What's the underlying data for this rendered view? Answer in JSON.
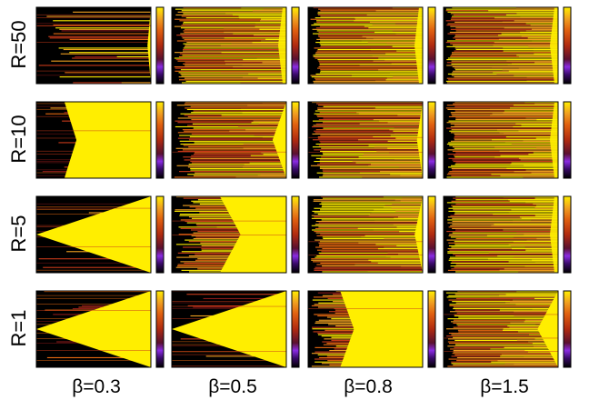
{
  "chart_data": {
    "type": "heatmap",
    "grid_layout": "4x4 panel grid; rows = R values, columns = beta values",
    "row_labels": [
      "R=50",
      "R=10",
      "R=5",
      "R=1"
    ],
    "col_labels": [
      "β=0.3",
      "β=0.5",
      "β=0.8",
      "β=1.5"
    ],
    "colormap": [
      "#000000",
      "#2a0a4a",
      "#7a1fd0",
      "#8a1a1a",
      "#c83a1a",
      "#e86a10",
      "#f0a020",
      "#ffee00"
    ],
    "colors": {
      "filled": "#ffee00",
      "empty": "#000000",
      "frame": "#000000"
    },
    "panels": [
      {
        "row": "R=50",
        "col": "β=0.3",
        "regime": "sparse streaks, thin bright wedge at right edge",
        "wedge_tip": 0.97,
        "density": 0.35
      },
      {
        "row": "R=50",
        "col": "β=0.5",
        "regime": "dense streaks",
        "wedge_tip": 1.0,
        "density": 0.85
      },
      {
        "row": "R=50",
        "col": "β=0.8",
        "regime": "dense streaks",
        "wedge_tip": 1.0,
        "density": 0.9
      },
      {
        "row": "R=50",
        "col": "β=1.5",
        "regime": "dense streaks",
        "wedge_tip": 1.0,
        "density": 0.9
      },
      {
        "row": "R=10",
        "col": "β=0.3",
        "regime": "solid wedge",
        "wedge_tip": 0.35,
        "density": 0.15
      },
      {
        "row": "R=10",
        "col": "β=0.5",
        "regime": "streaks with narrow wedge",
        "wedge_tip": 0.88,
        "density": 0.7
      },
      {
        "row": "R=10",
        "col": "β=0.8",
        "regime": "dense streaks, thin wedge",
        "wedge_tip": 0.95,
        "density": 0.85
      },
      {
        "row": "R=10",
        "col": "β=1.5",
        "regime": "dense streaks",
        "wedge_tip": 1.0,
        "density": 0.9
      },
      {
        "row": "R=5",
        "col": "β=0.3",
        "regime": "solid wedge",
        "wedge_tip": 0.0,
        "density": 0.1
      },
      {
        "row": "R=5",
        "col": "β=0.5",
        "regime": "streaks with wedge",
        "wedge_tip": 0.6,
        "density": 0.55
      },
      {
        "row": "R=5",
        "col": "β=0.8",
        "regime": "dense streaks, thin wedge",
        "wedge_tip": 0.93,
        "density": 0.85
      },
      {
        "row": "R=5",
        "col": "β=1.5",
        "regime": "dense streaks",
        "wedge_tip": 1.0,
        "density": 0.9
      },
      {
        "row": "R=1",
        "col": "β=0.3",
        "regime": "solid wedge",
        "wedge_tip": 0.0,
        "density": 0.1
      },
      {
        "row": "R=1",
        "col": "β=0.5",
        "regime": "solid wedge",
        "wedge_tip": 0.0,
        "density": 0.15
      },
      {
        "row": "R=1",
        "col": "β=0.8",
        "regime": "streaks with wedge",
        "wedge_tip": 0.4,
        "density": 0.6
      },
      {
        "row": "R=1",
        "col": "β=1.5",
        "regime": "dense streaks with wedge",
        "wedge_tip": 0.82,
        "density": 0.85
      }
    ]
  }
}
